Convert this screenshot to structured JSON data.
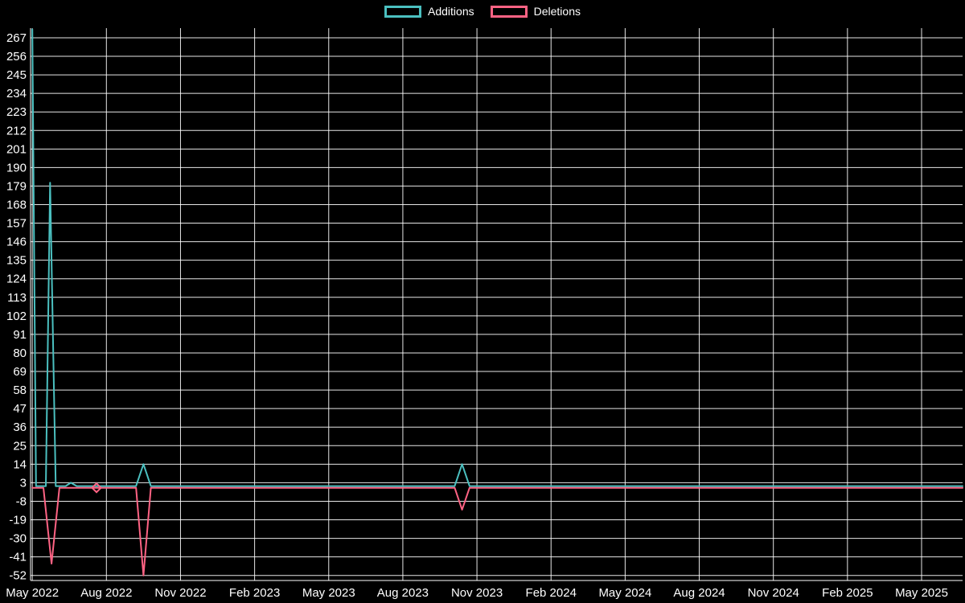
{
  "chart_data": {
    "type": "line",
    "title": "",
    "legend": {
      "position": "top",
      "items": [
        "Additions",
        "Deletions"
      ]
    },
    "background": "#000000",
    "grid": {
      "show": true,
      "color": "#ffffff"
    },
    "xlabel": "",
    "ylabel": "",
    "x_unit": "months since May 2022",
    "xlim": [
      -0.07,
      37.66
    ],
    "ylim": [
      -55,
      272.7
    ],
    "x_ticks": [
      {
        "x": 0,
        "label": "May 2022"
      },
      {
        "x": 3,
        "label": "Aug 2022"
      },
      {
        "x": 6,
        "label": "Nov 2022"
      },
      {
        "x": 9,
        "label": "Feb 2023"
      },
      {
        "x": 12,
        "label": "May 2023"
      },
      {
        "x": 15,
        "label": "Aug 2023"
      },
      {
        "x": 18,
        "label": "Nov 2023"
      },
      {
        "x": 21,
        "label": "Feb 2024"
      },
      {
        "x": 24,
        "label": "May 2024"
      },
      {
        "x": 27,
        "label": "Aug 2024"
      },
      {
        "x": 30,
        "label": "Nov 2024"
      },
      {
        "x": 33,
        "label": "Feb 2025"
      },
      {
        "x": 36,
        "label": "May 2025"
      }
    ],
    "y_ticks": [
      267,
      256,
      245,
      234,
      223,
      212,
      201,
      190,
      179,
      168,
      157,
      146,
      135,
      124,
      113,
      102,
      91,
      80,
      69,
      58,
      47,
      36,
      25,
      14,
      3,
      -8,
      -19,
      -30,
      -41,
      -52
    ],
    "series": [
      {
        "name": "Additions",
        "color": "#4bc0c0",
        "points": [
          [
            0,
            272
          ],
          [
            0.15,
            1
          ],
          [
            0.55,
            1
          ],
          [
            0.72,
            181
          ],
          [
            0.95,
            1
          ],
          [
            1.35,
            1
          ],
          [
            1.56,
            3
          ],
          [
            1.8,
            1
          ],
          [
            4.2,
            1
          ],
          [
            4.5,
            14
          ],
          [
            4.8,
            1
          ],
          [
            17.1,
            1
          ],
          [
            17.4,
            14
          ],
          [
            17.7,
            1
          ],
          [
            37.66,
            1
          ]
        ]
      },
      {
        "name": "Deletions",
        "color": "#ff6384",
        "points": [
          [
            0,
            0
          ],
          [
            0.45,
            0
          ],
          [
            0.78,
            -45
          ],
          [
            1.1,
            0
          ],
          [
            4.2,
            0
          ],
          [
            4.5,
            -52
          ],
          [
            4.8,
            0
          ],
          [
            17.1,
            0
          ],
          [
            17.4,
            -13
          ],
          [
            17.7,
            0
          ],
          [
            37.66,
            0
          ]
        ]
      }
    ],
    "markers": [
      {
        "series": "Deletions",
        "x": 2.6,
        "y": 0,
        "shape": "diamond"
      }
    ]
  }
}
